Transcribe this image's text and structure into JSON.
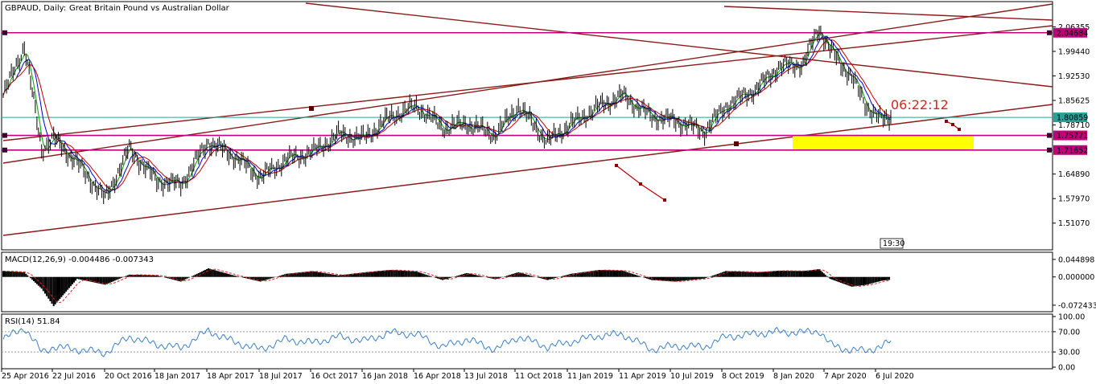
{
  "header": {
    "symbol": "GBPAUD, Daily:",
    "description": "Great Britain Pound vs Australian Dollar"
  },
  "countdown": "06:22:12",
  "time_marker": "19:30",
  "colors": {
    "price_line": "#000000",
    "ma_red": "#c00000",
    "ma_blue": "#0000cc",
    "ma_green": "#00a000",
    "channel": "#8b1a1a",
    "hline": "#c0007a",
    "zone": "#ffff00",
    "current_price": "#2aa198",
    "countdown": "#e02020",
    "rsi_line": "#3a7fc8",
    "macd_signal": "#e02020"
  },
  "price_axis": {
    "ticks": [
      "2.06355",
      "1.99440",
      "1.92530",
      "1.85625",
      "1.78710",
      "1.64890",
      "1.57970",
      "1.51070"
    ],
    "range": [
      1.44,
      2.13
    ]
  },
  "price_badges": [
    {
      "label": "2.04684",
      "value": 2.04684,
      "kind": "hline"
    },
    {
      "label": "1.80859",
      "value": 1.80859,
      "kind": "current"
    },
    {
      "label": "1.75771",
      "value": 1.75771,
      "kind": "hline"
    },
    {
      "label": "1.71652",
      "value": 1.71652,
      "kind": "hline"
    }
  ],
  "date_axis": [
    "25 Apr 2016",
    "22 Jul 2016",
    "20 Oct 2016",
    "18 Jan 2017",
    "18 Apr 2017",
    "18 Jul 2017",
    "16 Oct 2017",
    "16 Jan 2018",
    "16 Apr 2018",
    "13 Jul 2018",
    "11 Oct 2018",
    "11 Jan 2019",
    "11 Apr 2019",
    "10 Jul 2019",
    "8 Oct 2019",
    "8 Jan 2020",
    "7 Apr 2020",
    "6 Jul 2020"
  ],
  "macd": {
    "label": "MACD(12,26,9) -0.004486 -0.007343",
    "ticks": [
      "0.044898",
      "0.000000",
      "-0.072433"
    ],
    "range": [
      -0.085,
      0.055
    ]
  },
  "rsi": {
    "label": "RSI(14) 51.84",
    "ticks": [
      "100.00",
      "70.00",
      "30.00",
      "0.00"
    ],
    "levels": [
      70,
      30
    ]
  },
  "chart_data": {
    "type": "line",
    "title": "GBPAUD, Daily:  Great Britain Pound vs Australian Dollar",
    "x": [
      "2016-04-25",
      "2016-06-01",
      "2016-07-01",
      "2016-07-22",
      "2016-09-01",
      "2016-10-20",
      "2016-12-01",
      "2017-01-18",
      "2017-03-01",
      "2017-04-18",
      "2017-06-01",
      "2017-07-18",
      "2017-09-01",
      "2017-10-16",
      "2017-12-01",
      "2018-01-16",
      "2018-03-01",
      "2018-04-16",
      "2018-06-01",
      "2018-07-13",
      "2018-09-01",
      "2018-10-11",
      "2018-12-01",
      "2019-01-11",
      "2019-03-01",
      "2019-04-11",
      "2019-06-01",
      "2019-07-10",
      "2019-09-01",
      "2019-10-08",
      "2019-12-01",
      "2020-01-08",
      "2020-02-20",
      "2020-03-19",
      "2020-04-07",
      "2020-05-15",
      "2020-06-10",
      "2020-07-06",
      "2020-07-22"
    ],
    "series": [
      {
        "values": [
          1.87,
          2.01,
          1.72,
          1.75,
          1.68,
          1.58,
          1.72,
          1.63,
          1.62,
          1.74,
          1.7,
          1.64,
          1.69,
          1.71,
          1.76,
          1.75,
          1.81,
          1.84,
          1.78,
          1.79,
          1.76,
          1.84,
          1.74,
          1.79,
          1.84,
          1.87,
          1.81,
          1.8,
          1.77,
          1.84,
          1.89,
          1.95,
          1.96,
          2.06,
          2.0,
          1.92,
          1.84,
          1.8,
          1.81
        ]
      }
    ],
    "ylim": [
      1.44,
      2.13
    ],
    "macd_values": [
      0.015,
      0.012,
      -0.03,
      -0.075,
      -0.005,
      -0.02,
      0.006,
      0.004,
      -0.012,
      0.022,
      0.004,
      -0.012,
      0.008,
      0.015,
      0.004,
      0.012,
      0.018,
      0.014,
      -0.008,
      0.01,
      -0.006,
      0.012,
      -0.008,
      0.008,
      0.018,
      0.016,
      -0.008,
      -0.012,
      -0.004,
      0.015,
      0.012,
      0.016,
      0.015,
      0.02,
      -0.005,
      -0.025,
      -0.02,
      -0.01,
      -0.007
    ],
    "rsi_values": [
      55,
      78,
      30,
      40,
      35,
      28,
      60,
      45,
      38,
      72,
      50,
      35,
      55,
      48,
      60,
      52,
      68,
      65,
      40,
      55,
      35,
      60,
      40,
      50,
      62,
      65,
      35,
      42,
      40,
      60,
      66,
      70,
      68,
      72,
      45,
      32,
      34,
      40,
      52
    ]
  }
}
